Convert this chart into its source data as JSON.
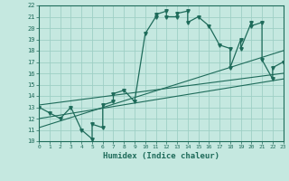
{
  "xlabel": "Humidex (Indice chaleur)",
  "xlim": [
    0,
    23
  ],
  "ylim": [
    10,
    22
  ],
  "xticks": [
    0,
    1,
    2,
    3,
    4,
    5,
    6,
    7,
    8,
    9,
    10,
    11,
    12,
    13,
    14,
    15,
    16,
    17,
    18,
    19,
    20,
    21,
    22,
    23
  ],
  "yticks": [
    10,
    11,
    12,
    13,
    14,
    15,
    16,
    17,
    18,
    19,
    20,
    21,
    22
  ],
  "bg_color": "#c5e8e0",
  "grid_color": "#9ecfc5",
  "line_color": "#1e6b5a",
  "curve_x": [
    0,
    1,
    2,
    3,
    4,
    5,
    5,
    6,
    6,
    7,
    7,
    8,
    9,
    10,
    11,
    11,
    12,
    12,
    13,
    13,
    14,
    14,
    15,
    16,
    17,
    18,
    18,
    19,
    19,
    20,
    20,
    21,
    21,
    22,
    22,
    23
  ],
  "curve_y": [
    13,
    12.5,
    12,
    13,
    11,
    10.2,
    11.5,
    11.2,
    13.2,
    13.5,
    14.2,
    14.5,
    13.5,
    19.5,
    21.0,
    21.2,
    21.5,
    21.0,
    21.0,
    21.3,
    21.5,
    20.5,
    21.0,
    20.2,
    18.5,
    18.2,
    16.5,
    19.0,
    18.2,
    20.5,
    20.2,
    20.5,
    17.2,
    15.5,
    16.5,
    17.0
  ],
  "line1_x": [
    0,
    23
  ],
  "line1_y": [
    13.2,
    16.0
  ],
  "line2_x": [
    0,
    23
  ],
  "line2_y": [
    12.0,
    15.5
  ],
  "line3_x": [
    0,
    23
  ],
  "line3_y": [
    11.2,
    18.0
  ]
}
